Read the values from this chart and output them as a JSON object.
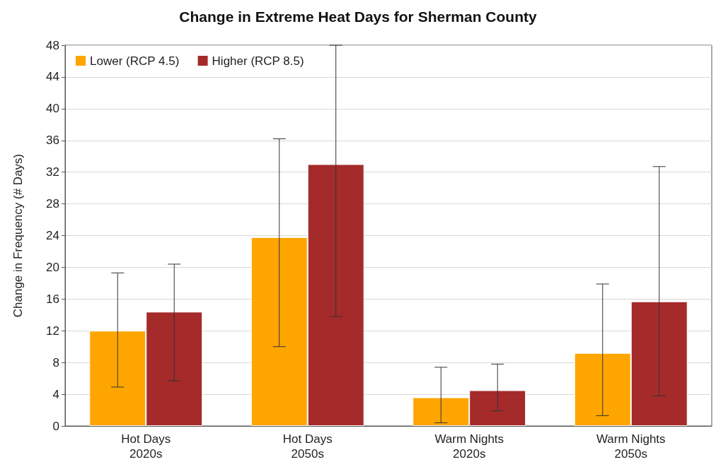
{
  "chart_data": {
    "type": "bar",
    "title": "Change in Extreme Heat Days for Sherman County",
    "ylabel": "Change in Frequency (# Days)",
    "categories": [
      "Hot Days\n2020s",
      "Hot Days\n2050s",
      "Warm Nights\n2020s",
      "Warm Nights\n2050s"
    ],
    "series": [
      {
        "name": "Lower (RCP 4.5)",
        "color": "#ffa500",
        "values": [
          12.0,
          23.8,
          3.6,
          9.2
        ],
        "errors": [
          [
            4.9,
            19.3
          ],
          [
            10.0,
            36.2
          ],
          [
            0.4,
            7.4
          ],
          [
            1.3,
            17.9
          ]
        ]
      },
      {
        "name": "Higher (RCP 8.5)",
        "color": "#a52a2a",
        "values": [
          14.4,
          33.0,
          4.5,
          15.7
        ],
        "errors": [
          [
            5.7,
            20.4
          ],
          [
            13.8,
            48
          ],
          [
            1.9,
            7.8
          ],
          [
            3.8,
            32.7
          ]
        ]
      }
    ],
    "ylim": [
      0,
      48
    ],
    "yticks": [
      0,
      4,
      8,
      12,
      16,
      20,
      24,
      28,
      32,
      36,
      40,
      44,
      48
    ],
    "grid": "y",
    "legend": "top left"
  }
}
